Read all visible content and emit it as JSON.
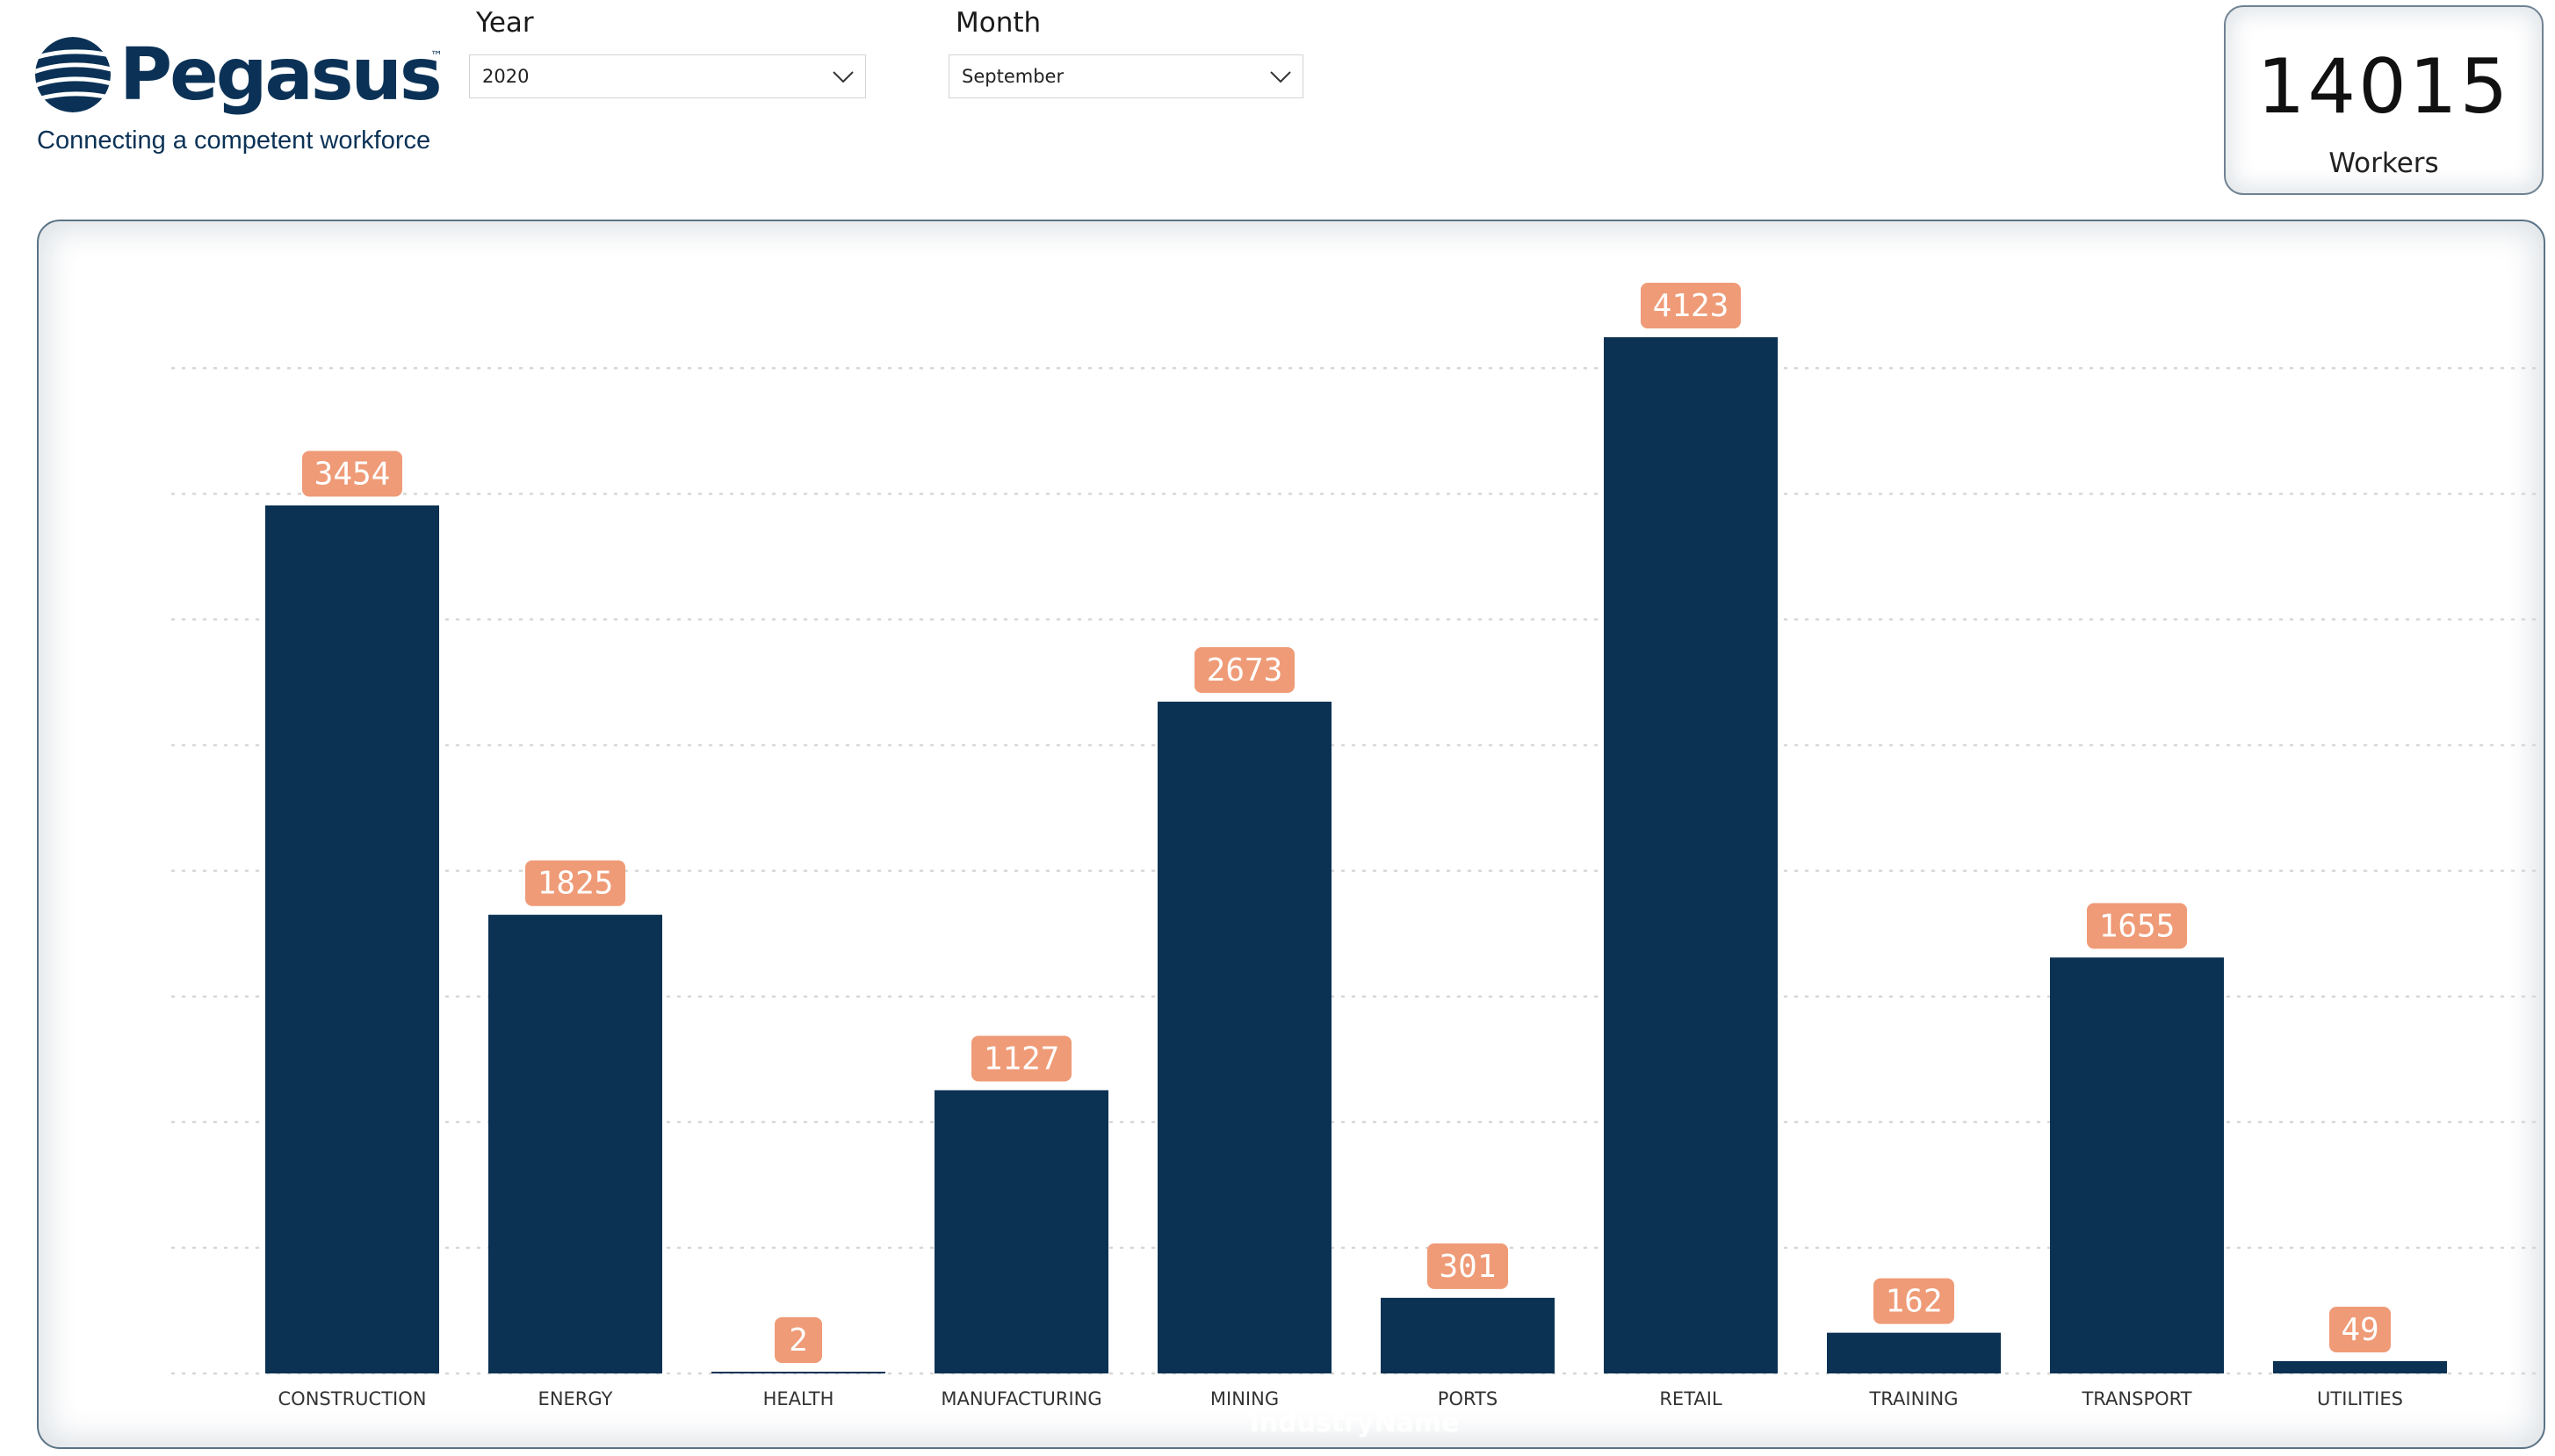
{
  "logo": {
    "brand": "Pegasus",
    "trademark": "™",
    "tagline": "Connecting a competent workforce",
    "icon": "globe-icon"
  },
  "filters": {
    "year": {
      "label": "Year",
      "value": "2020"
    },
    "month": {
      "label": "Month",
      "value": "September"
    }
  },
  "kpi": {
    "value": "14015",
    "label": "Workers"
  },
  "colors": {
    "bar": "#0b3253",
    "data_label_bg": "#ef9b77",
    "brand": "#0b3256"
  },
  "chart_data": {
    "type": "bar",
    "categories": [
      "CONSTRUCTION",
      "ENERGY",
      "HEALTH",
      "MANUFACTURING",
      "MINING",
      "PORTS",
      "RETAIL",
      "TRAINING",
      "TRANSPORT",
      "UTILITIES"
    ],
    "values": [
      3454,
      1825,
      2,
      1127,
      2673,
      301,
      4123,
      162,
      1655,
      49
    ],
    "data_labels": true,
    "xlabel": "IndustryName",
    "ylabel": "",
    "ylim": [
      0,
      4200
    ],
    "grid": true,
    "gridline_step": 500
  }
}
